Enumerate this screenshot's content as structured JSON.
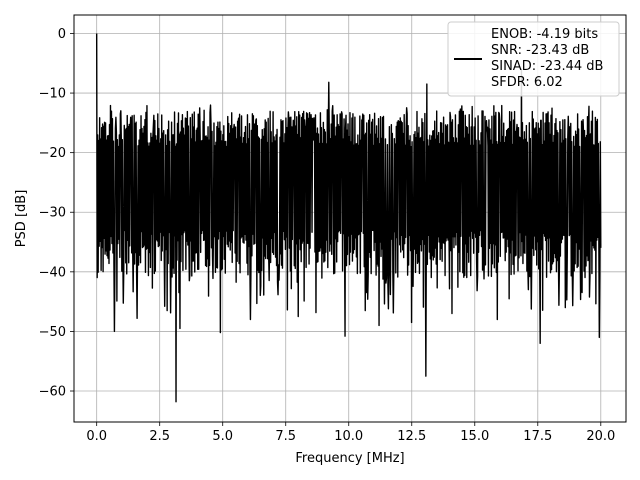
{
  "chart_data": {
    "type": "line",
    "title": "",
    "xlabel": "Frequency [MHz]",
    "ylabel": "PSD [dB]",
    "xlim": [
      -0.9,
      21.0
    ],
    "ylim": [
      -65.2,
      3.1
    ],
    "xticks": [
      0.0,
      2.5,
      5.0,
      7.5,
      10.0,
      12.5,
      15.0,
      17.5,
      20.0
    ],
    "xtick_labels": [
      "0.0",
      "2.5",
      "5.0",
      "7.5",
      "10.0",
      "12.5",
      "15.0",
      "17.5",
      "20.0"
    ],
    "yticks": [
      0,
      -10,
      -20,
      -30,
      -40,
      -50,
      -60
    ],
    "ytick_labels": [
      "0",
      "−10",
      "−20",
      "−30",
      "−40",
      "−50",
      "−60"
    ],
    "grid": true,
    "line_color": "#000000",
    "legend_position": "top-right",
    "legend": [
      "ENOB: -4.19 bits",
      "SNR: -23.43 dB",
      "SINAD: -23.44 dB",
      "SFDR: 6.02"
    ],
    "series": [
      {
        "x_range": [
          0.0,
          20.0
        ],
        "n_points": 1024,
        "typical_range": [
          -33,
          -13
        ],
        "peaks": [
          {
            "x": 0.0,
            "y": 0.0
          },
          {
            "x": 16.85,
            "y": -6.0
          },
          {
            "x": 9.2,
            "y": -8.2
          },
          {
            "x": 13.1,
            "y": -8.5
          }
        ],
        "dips": [
          {
            "x": 3.15,
            "y": -61.8
          },
          {
            "x": 13.05,
            "y": -57.5
          },
          {
            "x": 17.6,
            "y": -52.0
          },
          {
            "x": 19.95,
            "y": -51.0
          },
          {
            "x": 9.85,
            "y": -50.8
          },
          {
            "x": 4.9,
            "y": -50.2
          },
          {
            "x": 0.7,
            "y": -50.0
          },
          {
            "x": 3.3,
            "y": -49.5
          },
          {
            "x": 11.2,
            "y": -49.0
          },
          {
            "x": 12.5,
            "y": -48.5
          },
          {
            "x": 15.9,
            "y": -48.0
          },
          {
            "x": 8.0,
            "y": -47.5
          },
          {
            "x": 14.1,
            "y": -47.0
          },
          {
            "x": 6.1,
            "y": -48.0
          },
          {
            "x": 1.6,
            "y": -47.8
          },
          {
            "x": 2.8,
            "y": -46.5
          },
          {
            "x": 18.6,
            "y": -46.0
          }
        ]
      }
    ]
  }
}
